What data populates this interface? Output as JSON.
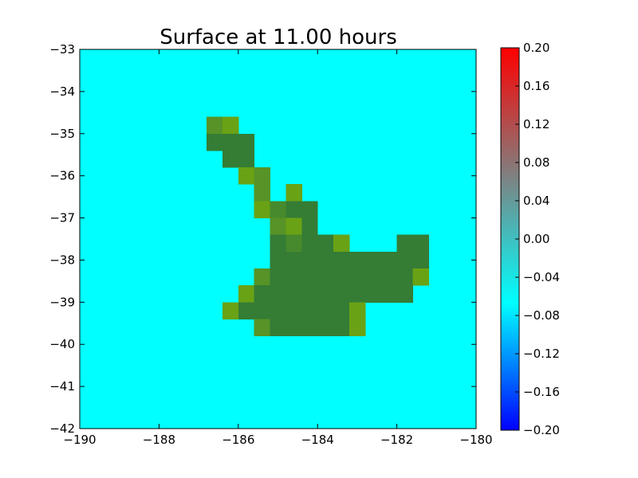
{
  "chart_data": {
    "type": "heatmap",
    "title": "Surface at 11.00 hours",
    "xlim": [
      -190,
      -180
    ],
    "ylim": [
      -42,
      -33
    ],
    "x_ticks": [
      -190,
      -188,
      -186,
      -184,
      -182,
      -180
    ],
    "y_ticks": [
      -33,
      -34,
      -35,
      -36,
      -37,
      -38,
      -39,
      -40,
      -41,
      -42
    ],
    "x_tick_labels": [
      "−190",
      "−188",
      "−186",
      "−184",
      "−182",
      "−180"
    ],
    "y_tick_labels": [
      "−33",
      "−34",
      "−35",
      "−36",
      "−37",
      "−38",
      "−39",
      "−40",
      "−41",
      "−42"
    ],
    "grid": false,
    "background_color": "#00ffff",
    "colorbar": {
      "range": [
        -0.2,
        0.2
      ],
      "ticks": [
        0.2,
        0.16,
        0.12,
        0.08,
        0.04,
        0.0,
        -0.04,
        -0.08,
        -0.12,
        -0.16,
        -0.2
      ],
      "tick_labels": [
        "0.20",
        "0.16",
        "0.12",
        "0.08",
        "0.04",
        "0.00",
        "−0.04",
        "−0.08",
        "−0.12",
        "−0.16",
        "−0.20"
      ],
      "colors": [
        "#0000ff",
        "#00ffff",
        "#808080",
        "#ff0000"
      ]
    },
    "cell_size": [
      0.4,
      0.4
    ],
    "land_cells": [
      {
        "x": -186.8,
        "y": -35.0,
        "color": "#579327"
      },
      {
        "x": -186.4,
        "y": -35.0,
        "color": "#6aa215"
      },
      {
        "x": -186.8,
        "y": -35.4,
        "color": "#357c35"
      },
      {
        "x": -186.4,
        "y": -35.4,
        "color": "#357c35"
      },
      {
        "x": -186.0,
        "y": -35.4,
        "color": "#357c35"
      },
      {
        "x": -186.4,
        "y": -35.8,
        "color": "#357c35"
      },
      {
        "x": -186.0,
        "y": -35.8,
        "color": "#357c35"
      },
      {
        "x": -186.0,
        "y": -36.2,
        "color": "#6aa215"
      },
      {
        "x": -185.6,
        "y": -36.2,
        "color": "#579327"
      },
      {
        "x": -185.6,
        "y": -36.6,
        "color": "#579327"
      },
      {
        "x": -184.8,
        "y": -36.6,
        "color": "#6aa215"
      },
      {
        "x": -185.6,
        "y": -37.0,
        "color": "#6aa215"
      },
      {
        "x": -185.2,
        "y": -37.0,
        "color": "#478a2d"
      },
      {
        "x": -184.8,
        "y": -37.0,
        "color": "#357c35"
      },
      {
        "x": -184.4,
        "y": -37.0,
        "color": "#357c35"
      },
      {
        "x": -185.2,
        "y": -37.4,
        "color": "#579327"
      },
      {
        "x": -184.8,
        "y": -37.4,
        "color": "#6aa215"
      },
      {
        "x": -184.4,
        "y": -37.4,
        "color": "#357c35"
      },
      {
        "x": -185.2,
        "y": -37.8,
        "color": "#357c35"
      },
      {
        "x": -184.8,
        "y": -37.8,
        "color": "#478a2d"
      },
      {
        "x": -184.4,
        "y": -37.8,
        "color": "#357c35"
      },
      {
        "x": -184.0,
        "y": -37.8,
        "color": "#357c35"
      },
      {
        "x": -183.6,
        "y": -37.8,
        "color": "#6aa215"
      },
      {
        "x": -182.0,
        "y": -37.8,
        "color": "#357c35"
      },
      {
        "x": -181.6,
        "y": -37.8,
        "color": "#357c35"
      },
      {
        "x": -185.2,
        "y": -38.2,
        "color": "#357c35"
      },
      {
        "x": -184.8,
        "y": -38.2,
        "color": "#357c35"
      },
      {
        "x": -184.4,
        "y": -38.2,
        "color": "#357c35"
      },
      {
        "x": -184.0,
        "y": -38.2,
        "color": "#357c35"
      },
      {
        "x": -183.6,
        "y": -38.2,
        "color": "#357c35"
      },
      {
        "x": -183.2,
        "y": -38.2,
        "color": "#357c35"
      },
      {
        "x": -182.8,
        "y": -38.2,
        "color": "#357c35"
      },
      {
        "x": -182.4,
        "y": -38.2,
        "color": "#357c35"
      },
      {
        "x": -182.0,
        "y": -38.2,
        "color": "#357c35"
      },
      {
        "x": -181.6,
        "y": -38.2,
        "color": "#357c35"
      },
      {
        "x": -185.6,
        "y": -38.6,
        "color": "#579327"
      },
      {
        "x": -185.2,
        "y": -38.6,
        "color": "#357c35"
      },
      {
        "x": -184.8,
        "y": -38.6,
        "color": "#357c35"
      },
      {
        "x": -184.4,
        "y": -38.6,
        "color": "#357c35"
      },
      {
        "x": -184.0,
        "y": -38.6,
        "color": "#357c35"
      },
      {
        "x": -183.6,
        "y": -38.6,
        "color": "#357c35"
      },
      {
        "x": -183.2,
        "y": -38.6,
        "color": "#357c35"
      },
      {
        "x": -182.8,
        "y": -38.6,
        "color": "#357c35"
      },
      {
        "x": -182.4,
        "y": -38.6,
        "color": "#357c35"
      },
      {
        "x": -182.0,
        "y": -38.6,
        "color": "#357c35"
      },
      {
        "x": -181.6,
        "y": -38.6,
        "color": "#6aa215"
      },
      {
        "x": -186.0,
        "y": -39.0,
        "color": "#6aa215"
      },
      {
        "x": -185.6,
        "y": -39.0,
        "color": "#357c35"
      },
      {
        "x": -185.2,
        "y": -39.0,
        "color": "#357c35"
      },
      {
        "x": -184.8,
        "y": -39.0,
        "color": "#357c35"
      },
      {
        "x": -184.4,
        "y": -39.0,
        "color": "#357c35"
      },
      {
        "x": -184.0,
        "y": -39.0,
        "color": "#357c35"
      },
      {
        "x": -183.6,
        "y": -39.0,
        "color": "#357c35"
      },
      {
        "x": -183.2,
        "y": -39.0,
        "color": "#357c35"
      },
      {
        "x": -182.8,
        "y": -39.0,
        "color": "#357c35"
      },
      {
        "x": -182.4,
        "y": -39.0,
        "color": "#357c35"
      },
      {
        "x": -182.0,
        "y": -39.0,
        "color": "#357c35"
      },
      {
        "x": -186.4,
        "y": -39.4,
        "color": "#6aa215"
      },
      {
        "x": -186.0,
        "y": -39.4,
        "color": "#357c35"
      },
      {
        "x": -185.6,
        "y": -39.4,
        "color": "#357c35"
      },
      {
        "x": -185.2,
        "y": -39.4,
        "color": "#357c35"
      },
      {
        "x": -184.8,
        "y": -39.4,
        "color": "#357c35"
      },
      {
        "x": -184.4,
        "y": -39.4,
        "color": "#357c35"
      },
      {
        "x": -184.0,
        "y": -39.4,
        "color": "#357c35"
      },
      {
        "x": -183.6,
        "y": -39.4,
        "color": "#357c35"
      },
      {
        "x": -183.2,
        "y": -39.4,
        "color": "#6aa215"
      },
      {
        "x": -185.6,
        "y": -39.8,
        "color": "#579327"
      },
      {
        "x": -185.2,
        "y": -39.8,
        "color": "#357c35"
      },
      {
        "x": -184.8,
        "y": -39.8,
        "color": "#357c35"
      },
      {
        "x": -184.4,
        "y": -39.8,
        "color": "#357c35"
      },
      {
        "x": -184.0,
        "y": -39.8,
        "color": "#357c35"
      },
      {
        "x": -183.6,
        "y": -39.8,
        "color": "#357c35"
      },
      {
        "x": -183.2,
        "y": -39.8,
        "color": "#6aa215"
      }
    ]
  }
}
